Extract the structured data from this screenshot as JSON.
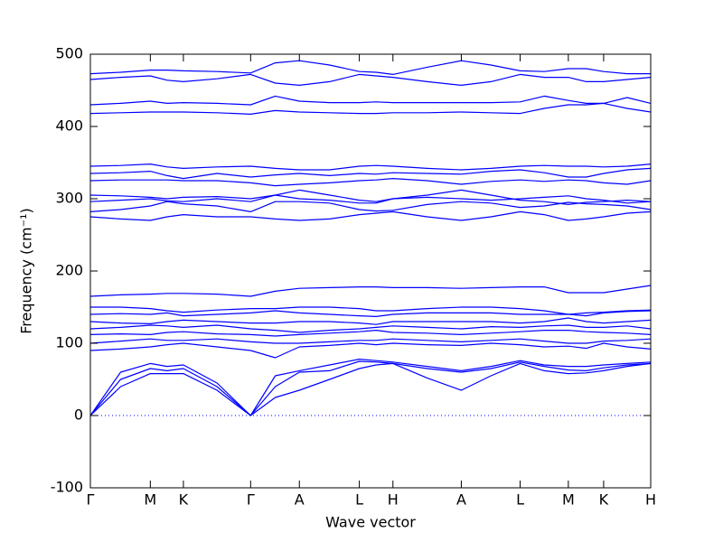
{
  "chart_data": {
    "type": "line",
    "x_label": "Wave vector",
    "y_label": "Frequency (cm⁻¹)",
    "x": [
      0,
      0.054,
      0.107,
      0.137,
      0.166,
      0.226,
      0.286,
      0.33,
      0.373,
      0.427,
      0.48,
      0.51,
      0.54,
      0.601,
      0.662,
      0.715,
      0.767,
      0.81,
      0.853,
      0.885,
      0.916,
      0.958,
      1.0
    ],
    "xlim": [
      0,
      1.0
    ],
    "xticks": [
      {
        "value": 0,
        "label": "Γ"
      },
      {
        "value": 0.107,
        "label": "M"
      },
      {
        "value": 0.166,
        "label": "K"
      },
      {
        "value": 0.286,
        "label": "Γ"
      },
      {
        "value": 0.373,
        "label": "A"
      },
      {
        "value": 0.48,
        "label": "L"
      },
      {
        "value": 0.54,
        "label": "H"
      },
      {
        "value": 0.662,
        "label": "A"
      },
      {
        "value": 0.767,
        "label": "L"
      },
      {
        "value": 0.853,
        "label": "M"
      },
      {
        "value": 0.916,
        "label": "K"
      },
      {
        "value": 1.0,
        "label": "H"
      }
    ],
    "ylim": [
      -100,
      500
    ],
    "yticks": [
      -100,
      0,
      100,
      200,
      300,
      400,
      500
    ],
    "zero_line": true,
    "series": [
      {
        "color": "#0000ff",
        "values": [
          0,
          40,
          58,
          58,
          58,
          35,
          0,
          25,
          35,
          50,
          65,
          70,
          72,
          52,
          35,
          55,
          72,
          62,
          58,
          59,
          62,
          68,
          72
        ]
      },
      {
        "color": "#0000ff",
        "values": [
          0,
          50,
          65,
          62,
          65,
          40,
          0,
          40,
          60,
          62,
          75,
          74,
          72,
          65,
          60,
          65,
          74,
          68,
          63,
          62,
          66,
          70,
          72
        ]
      },
      {
        "color": "#0000ff",
        "values": [
          0,
          60,
          72,
          68,
          70,
          45,
          0,
          55,
          62,
          70,
          78,
          76,
          74,
          68,
          62,
          68,
          76,
          70,
          68,
          68,
          70,
          72,
          74
        ]
      },
      {
        "color": "#0000ff",
        "values": [
          90,
          92,
          95,
          98,
          100,
          95,
          90,
          80,
          95,
          97,
          100,
          98,
          100,
          98,
          97,
          100,
          98,
          95,
          96,
          93,
          100,
          95,
          92
        ]
      },
      {
        "color": "#0000ff",
        "values": [
          100,
          103,
          106,
          104,
          104,
          106,
          102,
          100,
          100,
          102,
          104,
          104,
          106,
          104,
          102,
          104,
          106,
          103,
          100,
          100,
          103,
          104,
          106
        ]
      },
      {
        "color": "#0000ff",
        "values": [
          112,
          113,
          112,
          115,
          116,
          113,
          112,
          110,
          112,
          114,
          116,
          118,
          115,
          114,
          112,
          114,
          116,
          118,
          118,
          116,
          115,
          114,
          112
        ]
      },
      {
        "color": "#0000ff",
        "values": [
          120,
          122,
          125,
          124,
          122,
          125,
          120,
          118,
          115,
          118,
          120,
          122,
          124,
          122,
          120,
          123,
          122,
          124,
          125,
          122,
          122,
          124,
          120
        ]
      },
      {
        "color": "#0000ff",
        "values": [
          130,
          128,
          127,
          130,
          132,
          130,
          128,
          128,
          130,
          130,
          128,
          126,
          130,
          130,
          130,
          130,
          128,
          130,
          135,
          130,
          128,
          130,
          132
        ]
      },
      {
        "color": "#0000ff",
        "values": [
          140,
          141,
          140,
          142,
          138,
          140,
          142,
          145,
          142,
          140,
          138,
          137,
          140,
          142,
          142,
          142,
          140,
          140,
          140,
          138,
          142,
          144,
          145
        ]
      },
      {
        "color": "#0000ff",
        "values": [
          150,
          150,
          148,
          145,
          143,
          146,
          148,
          148,
          150,
          150,
          148,
          145,
          145,
          148,
          150,
          150,
          148,
          145,
          140,
          142,
          143,
          145,
          146
        ]
      },
      {
        "color": "#0000ff",
        "values": [
          165,
          167,
          168,
          169,
          169,
          168,
          165,
          172,
          176,
          177,
          178,
          178,
          177,
          177,
          176,
          177,
          178,
          178,
          170,
          170,
          170,
          175,
          180
        ]
      },
      {
        "color": "#0000ff",
        "values": [
          275,
          272,
          270,
          275,
          278,
          275,
          275,
          272,
          270,
          272,
          278,
          280,
          282,
          275,
          270,
          275,
          282,
          278,
          270,
          272,
          275,
          280,
          282
        ]
      },
      {
        "color": "#0000ff",
        "values": [
          282,
          285,
          290,
          296,
          293,
          290,
          282,
          296,
          296,
          294,
          285,
          283,
          284,
          292,
          296,
          294,
          288,
          290,
          295,
          293,
          292,
          290,
          285
        ]
      },
      {
        "color": "#0000ff",
        "values": [
          296,
          298,
          300,
          297,
          296,
          300,
          296,
          305,
          312,
          305,
          298,
          296,
          300,
          305,
          312,
          305,
          298,
          296,
          292,
          295,
          296,
          298,
          296
        ]
      },
      {
        "color": "#0000ff",
        "values": [
          305,
          304,
          302,
          300,
          302,
          303,
          300,
          305,
          300,
          298,
          294,
          294,
          300,
          302,
          300,
          298,
          300,
          302,
          304,
          300,
          298,
          294,
          296
        ]
      },
      {
        "color": "#0000ff",
        "values": [
          325,
          326,
          326,
          326,
          325,
          325,
          322,
          318,
          320,
          322,
          325,
          326,
          328,
          325,
          320,
          324,
          326,
          324,
          326,
          325,
          322,
          320,
          325
        ]
      },
      {
        "color": "#0000ff",
        "values": [
          335,
          336,
          338,
          332,
          328,
          335,
          330,
          333,
          335,
          332,
          335,
          334,
          336,
          335,
          334,
          338,
          340,
          336,
          330,
          330,
          335,
          340,
          342
        ]
      },
      {
        "color": "#0000ff",
        "values": [
          345,
          346,
          348,
          344,
          342,
          344,
          345,
          342,
          340,
          340,
          345,
          346,
          345,
          342,
          340,
          342,
          345,
          346,
          345,
          345,
          344,
          345,
          348
        ]
      },
      {
        "color": "#0000ff",
        "values": [
          418,
          419,
          420,
          420,
          420,
          419,
          417,
          422,
          420,
          419,
          418,
          418,
          419,
          419,
          420,
          419,
          418,
          425,
          430,
          430,
          432,
          425,
          420
        ]
      },
      {
        "color": "#0000ff",
        "values": [
          430,
          432,
          435,
          432,
          433,
          432,
          430,
          442,
          435,
          433,
          433,
          434,
          433,
          433,
          433,
          433,
          434,
          442,
          436,
          432,
          432,
          440,
          432
        ]
      },
      {
        "color": "#0000ff",
        "values": [
          465,
          468,
          470,
          464,
          462,
          466,
          472,
          460,
          457,
          462,
          472,
          470,
          468,
          462,
          457,
          462,
          472,
          468,
          468,
          462,
          462,
          465,
          468
        ]
      },
      {
        "color": "#0000ff",
        "values": [
          473,
          475,
          478,
          478,
          477,
          476,
          474,
          488,
          491,
          485,
          476,
          475,
          472,
          482,
          491,
          485,
          477,
          476,
          480,
          480,
          476,
          473,
          473
        ]
      }
    ]
  }
}
